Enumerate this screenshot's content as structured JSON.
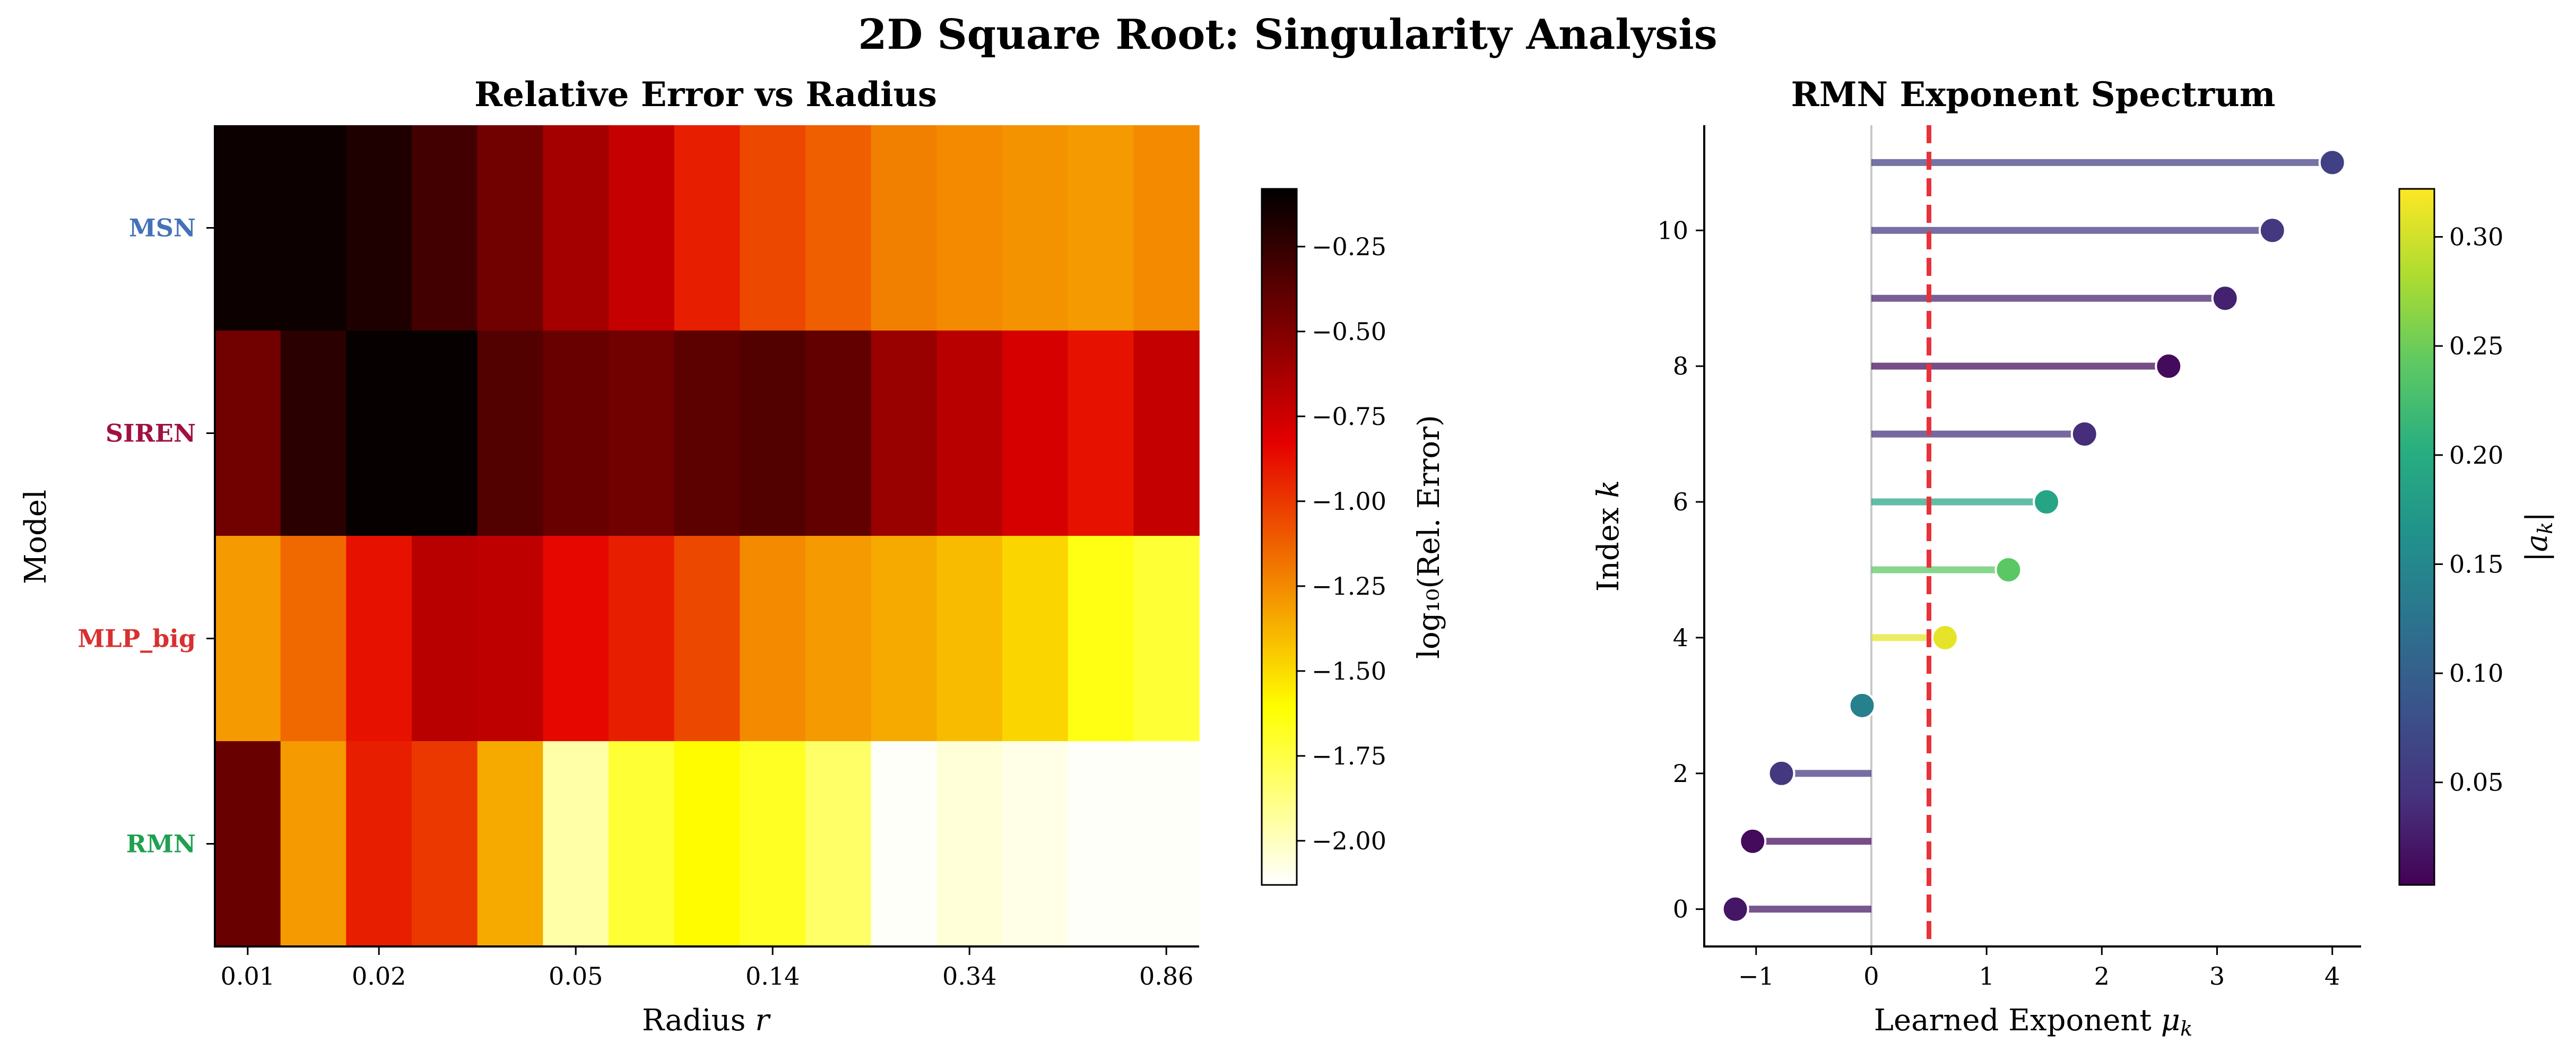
{
  "figure": {
    "title": "2D Square Root: Singularity Analysis"
  },
  "chart_data": [
    {
      "type": "heatmap",
      "title": "Relative Error vs Radius",
      "xlabel": "Radius",
      "xlabel_var": "r",
      "ylabel": "Model",
      "rows": [
        {
          "name": "MSN",
          "color": "#4472b8"
        },
        {
          "name": "SIREN",
          "color": "#a01040"
        },
        {
          "name": "MLP_big",
          "color": "#d83030"
        },
        {
          "name": "RMN",
          "color": "#20a050"
        }
      ],
      "columns": 15,
      "xticks": [
        "0.01",
        "0.02",
        "0.05",
        "0.14",
        "0.34",
        "0.86"
      ],
      "xtick_columns": [
        0,
        2,
        5,
        8,
        11,
        14
      ],
      "values": [
        [
          -0.12,
          -0.12,
          -0.18,
          -0.3,
          -0.45,
          -0.62,
          -0.72,
          -0.92,
          -1.05,
          -1.12,
          -1.22,
          -1.25,
          -1.28,
          -1.3,
          -1.25
        ],
        [
          -0.45,
          -0.22,
          -0.1,
          -0.1,
          -0.35,
          -0.42,
          -0.45,
          -0.38,
          -0.35,
          -0.4,
          -0.58,
          -0.68,
          -0.78,
          -0.88,
          -0.72
        ],
        [
          -1.3,
          -1.15,
          -0.88,
          -0.68,
          -0.7,
          -0.85,
          -0.92,
          -1.05,
          -1.25,
          -1.3,
          -1.35,
          -1.4,
          -1.48,
          -1.65,
          -1.72
        ],
        [
          -0.42,
          -1.3,
          -0.92,
          -1.0,
          -1.35,
          -1.95,
          -1.72,
          -1.6,
          -1.68,
          -1.82,
          -2.12,
          -2.05,
          -2.08,
          -2.12,
          -2.12
        ]
      ],
      "colorbar": {
        "label": "log₁₀(Rel. Error)",
        "min": -2.13,
        "max": -0.08,
        "ticks": [
          -0.25,
          -0.5,
          -0.75,
          -1.0,
          -1.25,
          -1.5,
          -1.75,
          -2.0
        ],
        "tick_labels": [
          "−0.25",
          "−0.50",
          "−0.75",
          "−1.00",
          "−1.25",
          "−1.50",
          "−1.75",
          "−2.00"
        ]
      }
    },
    {
      "type": "scatter",
      "title": "RMN Exponent Spectrum",
      "xlabel": "Learned Exponent",
      "xlabel_var": "μ",
      "xlabel_sub": "k",
      "ylabel": "Index",
      "ylabel_var": "k",
      "xlim": [
        -1.45,
        4.25
      ],
      "ylim": [
        -0.55,
        11.55
      ],
      "xticks": [
        -1,
        0,
        1,
        2,
        3,
        4
      ],
      "xtick_labels": [
        "−1",
        "0",
        "1",
        "2",
        "3",
        "4"
      ],
      "yticks": [
        0,
        2,
        4,
        6,
        8,
        10
      ],
      "yline": 0.5,
      "points": [
        {
          "k": 0,
          "mu": -1.18,
          "amp": 0.02
        },
        {
          "k": 1,
          "mu": -1.03,
          "amp": 0.01
        },
        {
          "k": 2,
          "mu": -0.78,
          "amp": 0.05
        },
        {
          "k": 3,
          "mu": -0.08,
          "amp": 0.14
        },
        {
          "k": 4,
          "mu": 0.64,
          "amp": 0.31
        },
        {
          "k": 5,
          "mu": 1.19,
          "amp": 0.24
        },
        {
          "k": 6,
          "mu": 1.52,
          "amp": 0.19
        },
        {
          "k": 7,
          "mu": 1.85,
          "amp": 0.04
        },
        {
          "k": 8,
          "mu": 2.58,
          "amp": 0.01
        },
        {
          "k": 9,
          "mu": 3.07,
          "amp": 0.03
        },
        {
          "k": 10,
          "mu": 3.48,
          "amp": 0.05
        },
        {
          "k": 11,
          "mu": 4.0,
          "amp": 0.06
        }
      ],
      "colorbar": {
        "label_var": "a",
        "label_sub": "k",
        "min": 0.003,
        "max": 0.322,
        "ticks": [
          0.05,
          0.1,
          0.15,
          0.2,
          0.25,
          0.3
        ],
        "tick_labels": [
          "0.05",
          "0.10",
          "0.15",
          "0.20",
          "0.25",
          "0.30"
        ]
      }
    }
  ]
}
